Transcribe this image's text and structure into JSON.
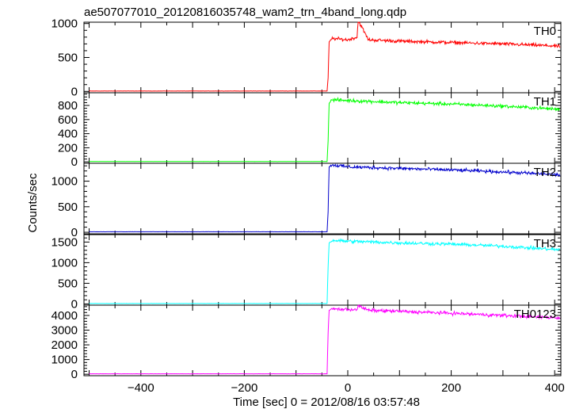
{
  "chart_data": {
    "type": "line",
    "title": "ae507077010_20120816035748_wam2_trn_4band_long.qdp",
    "xlabel": "Time [sec] 0 = 2012/08/16 03:57:48",
    "ylabel": "Counts/sec",
    "xlim": [
      -510,
      412
    ],
    "x_ticks": [
      -400,
      -200,
      0,
      200,
      400
    ],
    "x_tick_labels": [
      "−400",
      "−200",
      "0",
      "200",
      "400"
    ],
    "grid": false,
    "onset_time": -38,
    "panels": [
      {
        "name": "TH0",
        "color": "#ff0000",
        "ylim": [
          -20,
          1020
        ],
        "y_ticks": [
          0,
          500,
          1000
        ],
        "series": {
          "x": [
            -500,
            -40,
            -38,
            -36,
            -30,
            0,
            18,
            20,
            40,
            100,
            200,
            300,
            400,
            410
          ],
          "y": [
            5,
            5,
            200,
            730,
            780,
            760,
            800,
            1050,
            760,
            740,
            720,
            700,
            670,
            660
          ]
        }
      },
      {
        "name": "TH1",
        "color": "#00ff00",
        "ylim": [
          -20,
          980
        ],
        "y_ticks": [
          0,
          200,
          400,
          600,
          800
        ],
        "series": {
          "x": [
            -500,
            -40,
            -38,
            -36,
            -30,
            0,
            100,
            200,
            300,
            400,
            410
          ],
          "y": [
            5,
            5,
            300,
            830,
            880,
            870,
            840,
            820,
            790,
            750,
            740
          ]
        }
      },
      {
        "name": "TH2",
        "color": "#0000cc",
        "ylim": [
          -30,
          1350
        ],
        "y_ticks": [
          0,
          500,
          1000
        ],
        "series": {
          "x": [
            -500,
            -40,
            -38,
            -36,
            -30,
            0,
            100,
            200,
            300,
            400,
            410
          ],
          "y": [
            10,
            10,
            400,
            1280,
            1320,
            1280,
            1250,
            1220,
            1180,
            1130,
            1120
          ]
        }
      },
      {
        "name": "TH3",
        "color": "#00ffff",
        "ylim": [
          -30,
          1680
        ],
        "y_ticks": [
          0,
          500,
          1000,
          1500
        ],
        "series": {
          "x": [
            -500,
            -40,
            -38,
            -36,
            -30,
            0,
            100,
            200,
            300,
            400,
            410
          ],
          "y": [
            10,
            10,
            900,
            1480,
            1540,
            1520,
            1480,
            1450,
            1400,
            1320,
            1310
          ]
        }
      },
      {
        "name": "TH0123",
        "color": "#ff00ff",
        "ylim": [
          -100,
          4700
        ],
        "y_ticks": [
          0,
          1000,
          2000,
          3000,
          4000
        ],
        "series": {
          "x": [
            -500,
            -40,
            -38,
            -36,
            -30,
            0,
            18,
            20,
            40,
            100,
            200,
            300,
            400,
            410
          ],
          "y": [
            30,
            30,
            2800,
            4350,
            4450,
            4400,
            4420,
            4650,
            4350,
            4280,
            4150,
            4000,
            3850,
            3820
          ]
        }
      }
    ]
  }
}
